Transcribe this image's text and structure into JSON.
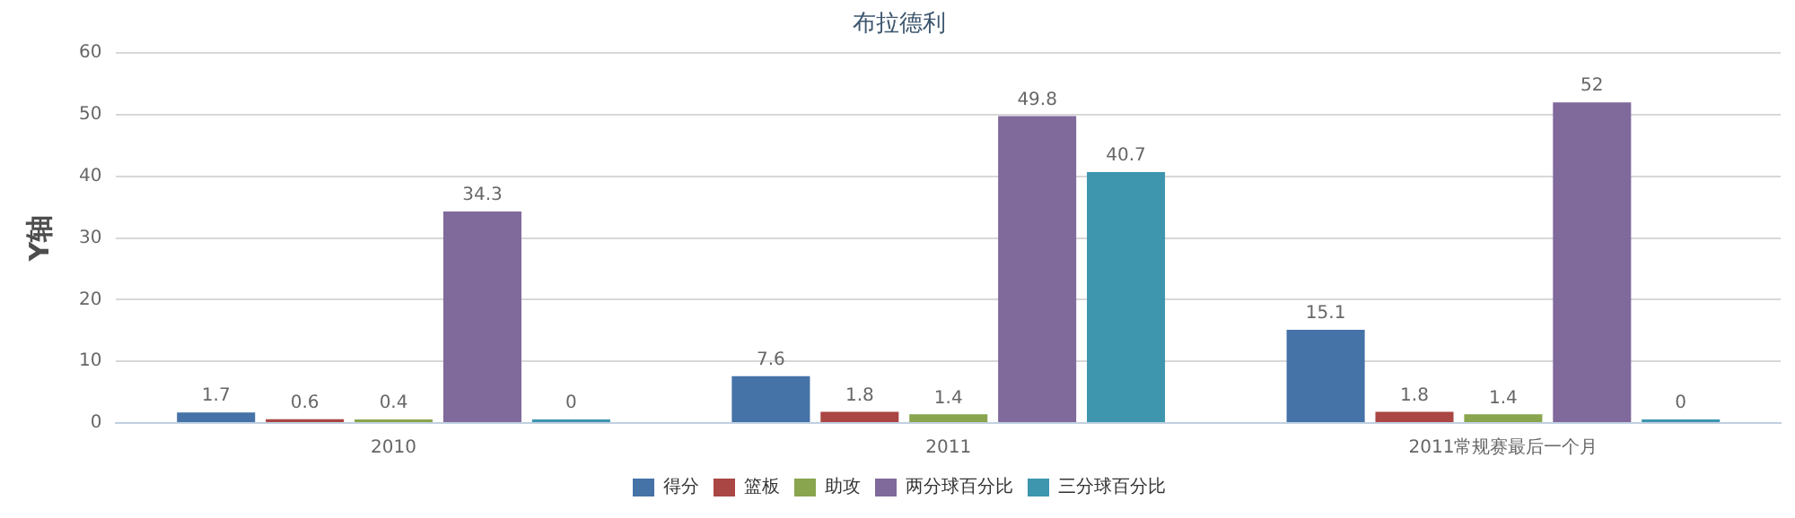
{
  "chart_data": {
    "type": "bar",
    "title": "布拉德利",
    "ylabel": "Y轴",
    "categories": [
      "2010",
      "2011",
      "2011常规赛最后一个月"
    ],
    "series": [
      {
        "name": "得分",
        "color": "#4572a7",
        "values": [
          1.7,
          7.6,
          15.1
        ]
      },
      {
        "name": "篮板",
        "color": "#aa4643",
        "values": [
          0.6,
          1.8,
          1.8
        ]
      },
      {
        "name": "助攻",
        "color": "#89a54e",
        "values": [
          0.4,
          1.4,
          1.4
        ]
      },
      {
        "name": "两分球百分比",
        "color": "#80699b",
        "values": [
          34.3,
          49.8,
          52
        ]
      },
      {
        "name": "三分球百分比",
        "color": "#3d96ae",
        "values": [
          0,
          40.7,
          0
        ]
      }
    ],
    "ylim": [
      0,
      60
    ],
    "yticks": [
      0,
      10,
      20,
      30,
      40,
      50,
      60
    ],
    "grid": "y",
    "legend": "bottom",
    "data_labels": true
  }
}
